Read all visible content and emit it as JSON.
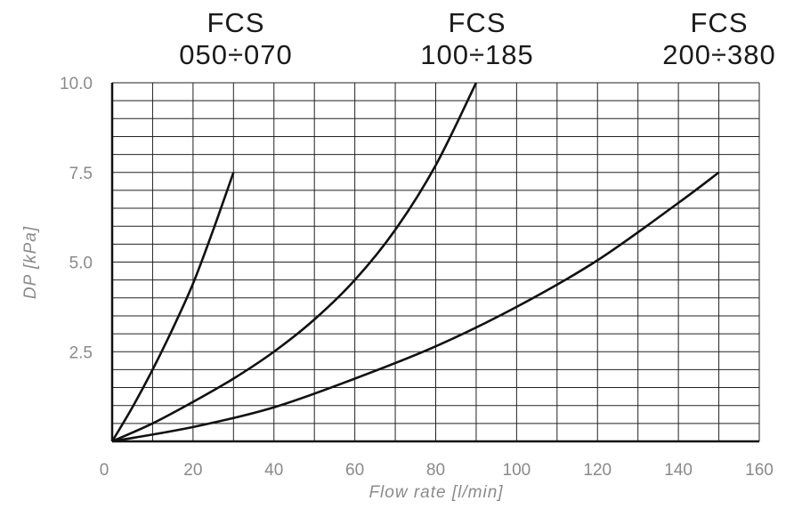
{
  "chart_data": {
    "type": "line",
    "title": "",
    "xlabel": "Flow rate [l/min]",
    "ylabel": "DP [kPa]",
    "xlim": [
      0,
      160
    ],
    "ylim": [
      0,
      10
    ],
    "grid": true,
    "x_ticks": [
      0,
      20,
      40,
      60,
      80,
      100,
      120,
      140,
      160
    ],
    "x_tick_labels": [
      "0",
      "20",
      "40",
      "60",
      "80",
      "100",
      "120",
      "140",
      "160"
    ],
    "y_ticks": [
      2.5,
      5.0,
      7.5,
      10.0
    ],
    "y_tick_labels": [
      "2.5",
      "5.0",
      "7.5",
      "10.0"
    ],
    "series": [
      {
        "name": "FCS 050÷070",
        "label_line1": "FCS",
        "label_line2": "050÷070",
        "x": [
          0,
          5,
          10,
          15,
          20,
          25,
          30
        ],
        "y": [
          0,
          0.95,
          2.0,
          3.15,
          4.4,
          5.9,
          7.5
        ]
      },
      {
        "name": "FCS 100÷185",
        "label_line1": "FCS",
        "label_line2": "100÷185",
        "x": [
          0,
          10,
          20,
          30,
          40,
          50,
          60,
          70,
          80,
          90
        ],
        "y": [
          0,
          0.5,
          1.1,
          1.75,
          2.5,
          3.4,
          4.5,
          5.9,
          7.7,
          10.0
        ]
      },
      {
        "name": "FCS 200÷380",
        "label_line1": "FCS",
        "label_line2": "200÷380",
        "x": [
          0,
          20,
          40,
          60,
          80,
          100,
          120,
          140,
          150
        ],
        "y": [
          0,
          0.4,
          0.95,
          1.75,
          2.65,
          3.75,
          5.05,
          6.65,
          7.5
        ]
      }
    ]
  }
}
